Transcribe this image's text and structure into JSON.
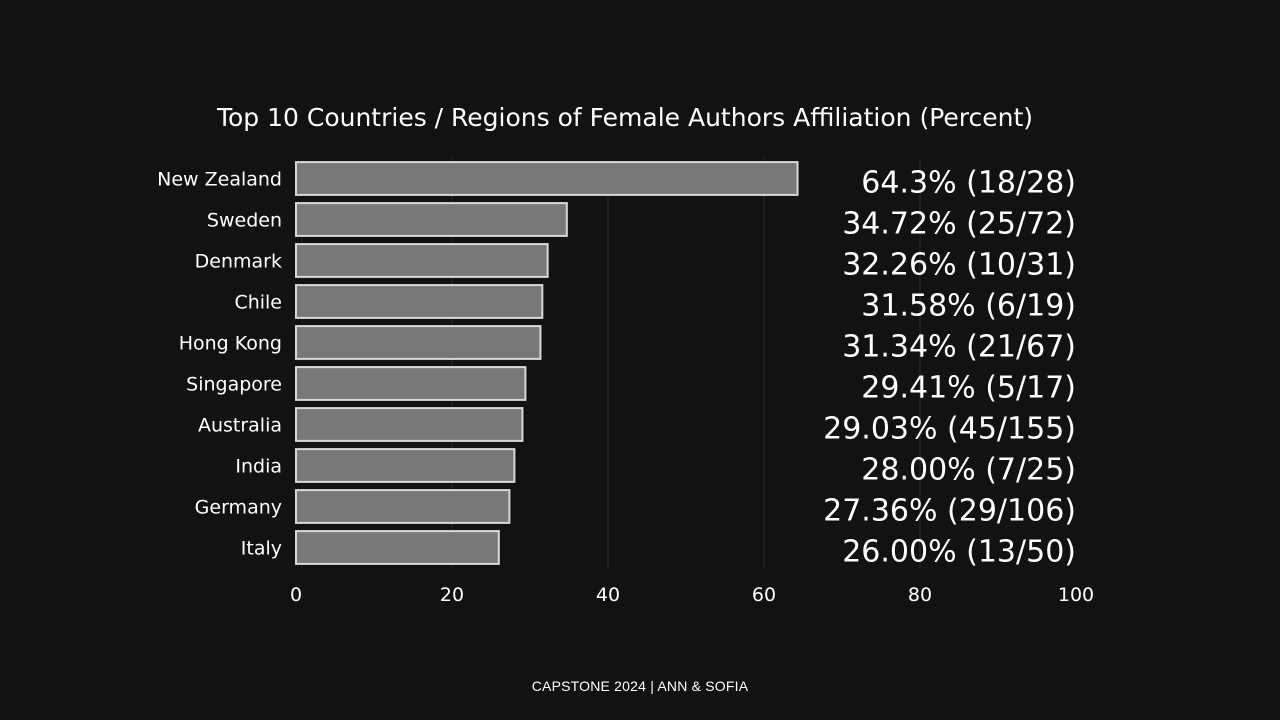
{
  "chart_data": {
    "type": "bar",
    "orientation": "horizontal",
    "title": "Top 10 Countries / Regions of Female Authors Affiliation (Percent)",
    "xlabel": "",
    "ylabel": "",
    "xlim": [
      0,
      100
    ],
    "x_ticks": [
      0,
      20,
      40,
      60,
      80,
      100
    ],
    "grid": true,
    "categories": [
      "New Zealand",
      "Sweden",
      "Denmark",
      "Chile",
      "Hong Kong",
      "Singapore",
      "Australia",
      "India",
      "Germany",
      "Italy"
    ],
    "values": [
      64.3,
      34.72,
      32.26,
      31.58,
      31.34,
      29.41,
      29.03,
      28.0,
      27.36,
      26.0
    ],
    "value_labels": [
      "64.3% (18/28)",
      "34.72% (25/72)",
      "32.26% (10/31)",
      "31.58% (6/19)",
      "31.34% (21/67)",
      "29.41% (5/17)",
      "29.03% (45/155)",
      "28.00% (7/25)",
      "27.36% (29/106)",
      "26.00% (13/50)"
    ],
    "colors": {
      "background": "#121212",
      "bar_fill": "#787878",
      "bar_stroke": "#d9d9d9",
      "grid": "#2a2a2a",
      "text": "#ffffff"
    }
  },
  "footer": {
    "text": "CAPSTONE 2024 | ANN & SOFIA"
  }
}
